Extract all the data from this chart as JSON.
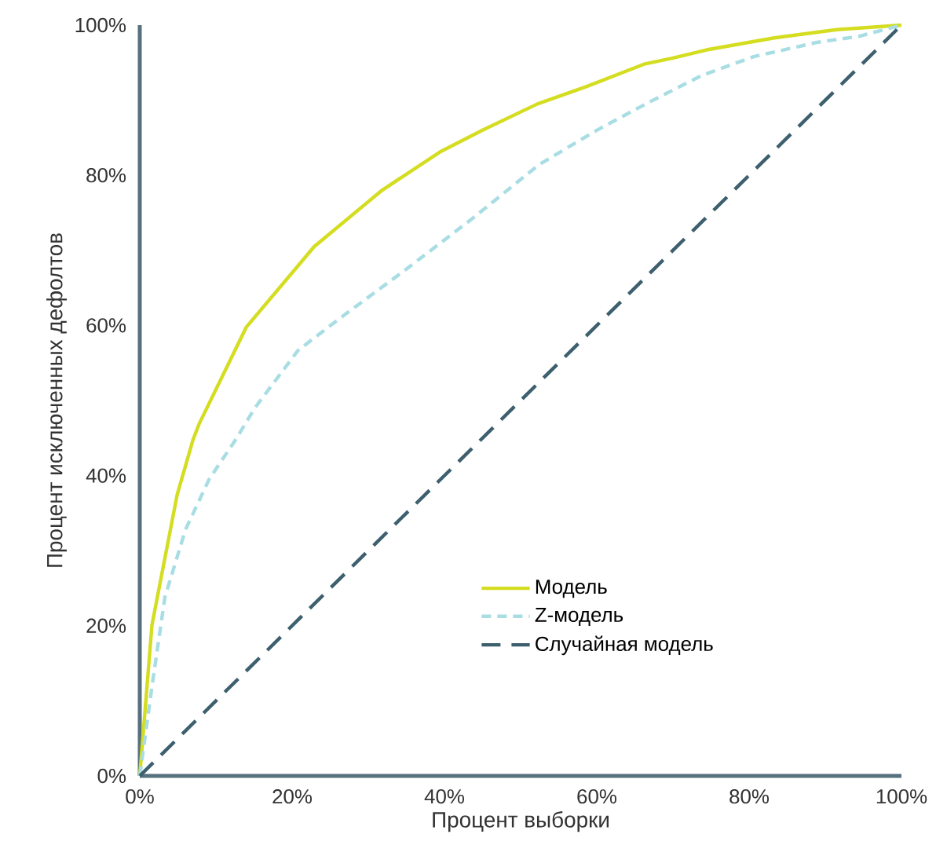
{
  "chart_data": {
    "type": "line",
    "xlabel": "Процент выборки",
    "ylabel": "Процент исключенных дефолтов",
    "xlim": [
      0,
      100
    ],
    "ylim": [
      0,
      100
    ],
    "xticks": [
      {
        "value": 0,
        "label": "0%"
      },
      {
        "value": 20,
        "label": "20%"
      },
      {
        "value": 40,
        "label": "40%"
      },
      {
        "value": 60,
        "label": "60%"
      },
      {
        "value": 80,
        "label": "80%"
      },
      {
        "value": 100,
        "label": "100%"
      }
    ],
    "yticks": [
      {
        "value": 0,
        "label": "0%"
      },
      {
        "value": 20,
        "label": "20%"
      },
      {
        "value": 40,
        "label": "40%"
      },
      {
        "value": 60,
        "label": "60%"
      },
      {
        "value": 80,
        "label": "80%"
      },
      {
        "value": 100,
        "label": "100%"
      }
    ],
    "grid": false,
    "legend": "bottom",
    "marker": "none",
    "series": [
      {
        "name": "Модель",
        "color": "#d4dd1f",
        "line_style": "solid",
        "x": [
          0,
          1.6,
          4.9,
          7.0,
          7.8,
          14.0,
          22.9,
          31.8,
          39.4,
          45.0,
          52.2,
          58.6,
          66.2,
          69.9,
          74.4,
          83.3,
          91.5,
          100
        ],
        "values": [
          0,
          20.1,
          37.4,
          44.8,
          46.9,
          59.8,
          70.5,
          78.0,
          83.1,
          86.0,
          89.5,
          91.8,
          94.8,
          95.6,
          96.7,
          98.3,
          99.4,
          100
        ]
      },
      {
        "name": "Z-модель",
        "color": "#a8dde3",
        "line_style": "dashed",
        "x": [
          0,
          1.6,
          3.3,
          6.0,
          9.1,
          12.6,
          15.1,
          20.8,
          27.0,
          34.6,
          43.5,
          52.4,
          60.0,
          66.8,
          73.8,
          80.6,
          88.9,
          94.4,
          100
        ],
        "values": [
          0,
          11.9,
          23.8,
          32.8,
          39.5,
          44.8,
          49.0,
          56.7,
          61.5,
          67.2,
          74.1,
          81.4,
          86.0,
          89.7,
          93.3,
          95.8,
          97.7,
          98.5,
          100
        ]
      },
      {
        "name": "Случайная модель",
        "color": "#3d5f6e",
        "line_style": "dashed_long",
        "x": [
          0,
          100
        ],
        "values": [
          0,
          100
        ]
      }
    ]
  }
}
